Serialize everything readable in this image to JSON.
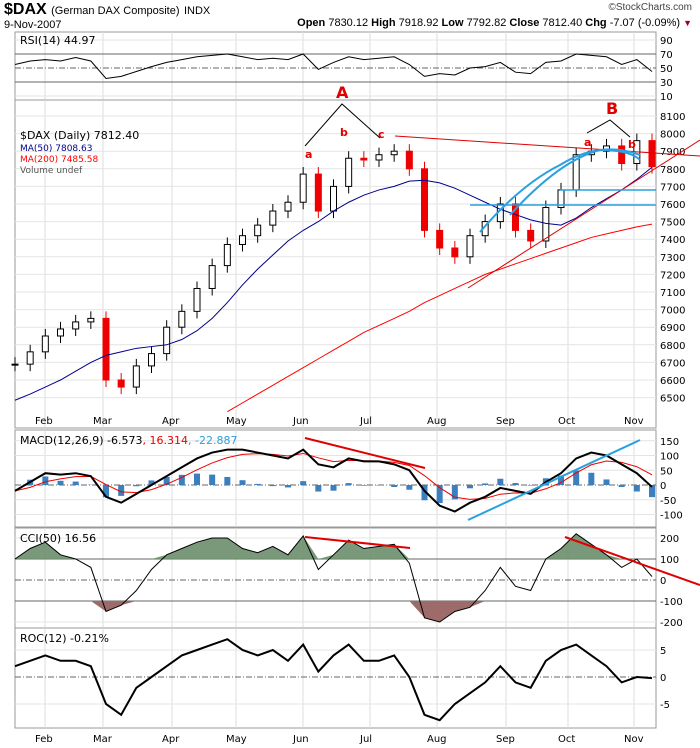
{
  "header": {
    "symbol": "$DAX",
    "name": "(German DAX Composite)",
    "exchange": "INDX",
    "date": "9-Nov-2007",
    "copyright": "©StockCharts.com",
    "open_label": "Open",
    "open": "7830.12",
    "high_label": "High",
    "high": "7918.92",
    "low_label": "Low",
    "low": "7792.82",
    "close_label": "Close",
    "close": "7812.40",
    "chg_label": "Chg",
    "chg": "-7.07 (-0.09%)",
    "chg_icon": "down-triangle-icon"
  },
  "legends": {
    "rsi": "RSI(14) 44.97",
    "price": "$DAX (Daily) 7812.40",
    "ma50": "MA(50) 7808.63",
    "ma200": "MA(200) 7485.58",
    "volume": "Volume undef",
    "macd": "MACD(12,26,9) -6.573",
    "macd_signal": ", 16.314",
    "macd_hist": ", -22.887",
    "cci": "CCI(50) 16.56",
    "roc": "ROC(12) -0.21%"
  },
  "annotations": {
    "A": "A",
    "B": "B",
    "a1": "a",
    "b1": "b",
    "c1": "c",
    "a2": "a",
    "b2": "b"
  },
  "colors": {
    "ma50": "#00008b",
    "ma200": "#ff0000",
    "annot": "#e00000",
    "channel": "#2aa0e0",
    "cci_fill_pos": "#6b8e6b",
    "cci_fill_neg": "#9e6b6b",
    "hist": "#3b7fbf"
  },
  "chart_data": {
    "type": "line",
    "months": [
      "Feb",
      "Mar",
      "Apr",
      "May",
      "Jun",
      "Jul",
      "Aug",
      "Sep",
      "Oct",
      "Nov"
    ],
    "dates": [
      "2007-01-19",
      "2007-01-26",
      "2007-02-02",
      "2007-02-09",
      "2007-02-16",
      "2007-02-23",
      "2007-03-02",
      "2007-03-09",
      "2007-03-16",
      "2007-03-23",
      "2007-03-30",
      "2007-04-06",
      "2007-04-13",
      "2007-04-20",
      "2007-04-27",
      "2007-05-04",
      "2007-05-11",
      "2007-05-18",
      "2007-05-25",
      "2007-06-01",
      "2007-06-08",
      "2007-06-15",
      "2007-06-22",
      "2007-06-29",
      "2007-07-06",
      "2007-07-13",
      "2007-07-20",
      "2007-07-27",
      "2007-08-03",
      "2007-08-10",
      "2007-08-17",
      "2007-08-24",
      "2007-08-31",
      "2007-09-07",
      "2007-09-14",
      "2007-09-21",
      "2007-09-28",
      "2007-10-05",
      "2007-10-12",
      "2007-10-19",
      "2007-10-26",
      "2007-11-02",
      "2007-11-09"
    ],
    "price": {
      "ticks": [
        8100,
        8000,
        7900,
        7800,
        7700,
        7600,
        7500,
        7400,
        7300,
        7200,
        7100,
        7000,
        6900,
        6800,
        6700,
        6600,
        6500
      ],
      "close": [
        6690,
        6760,
        6850,
        6890,
        6930,
        6950,
        6600,
        6560,
        6680,
        6750,
        6900,
        6990,
        7120,
        7250,
        7370,
        7420,
        7480,
        7560,
        7610,
        7770,
        7560,
        7700,
        7860,
        7850,
        7880,
        7900,
        7800,
        7450,
        7350,
        7300,
        7420,
        7500,
        7600,
        7450,
        7390,
        7580,
        7680,
        7880,
        7900,
        7930,
        7830,
        7960,
        7812.4
      ],
      "ma50": [
        6485,
        6520,
        6560,
        6600,
        6650,
        6700,
        6740,
        6760,
        6780,
        6790,
        6800,
        6830,
        6880,
        6950,
        7040,
        7140,
        7230,
        7310,
        7390,
        7450,
        7500,
        7560,
        7610,
        7650,
        7680,
        7700,
        7730,
        7735,
        7720,
        7690,
        7650,
        7610,
        7570,
        7540,
        7510,
        7490,
        7480,
        7520,
        7580,
        7630,
        7680,
        7740,
        7808.63
      ],
      "ma200_start_index": 14,
      "ma200": [
        6420,
        6470,
        6520,
        6570,
        6620,
        6670,
        6720,
        6770,
        6820,
        6870,
        6910,
        6950,
        6990,
        7040,
        7080,
        7120,
        7160,
        7200,
        7230,
        7260,
        7290,
        7320,
        7350,
        7380,
        7410,
        7430,
        7450,
        7470,
        7485.58
      ]
    },
    "rsi": {
      "ticks": [
        90,
        70,
        50,
        30,
        10
      ],
      "values": [
        55,
        60,
        62,
        60,
        65,
        60,
        35,
        38,
        45,
        52,
        58,
        62,
        66,
        68,
        70,
        66,
        62,
        64,
        62,
        70,
        48,
        58,
        66,
        62,
        64,
        66,
        55,
        38,
        42,
        40,
        50,
        52,
        58,
        44,
        42,
        58,
        60,
        70,
        68,
        66,
        55,
        62,
        44.97
      ]
    },
    "macd": {
      "ticks": [
        150,
        100,
        50,
        0,
        -50,
        -100
      ],
      "values": [
        -20,
        10,
        40,
        35,
        40,
        30,
        -40,
        -60,
        -30,
        0,
        30,
        60,
        90,
        110,
        120,
        120,
        110,
        100,
        90,
        120,
        70,
        60,
        90,
        80,
        80,
        70,
        50,
        -20,
        -70,
        -90,
        -60,
        -40,
        -10,
        -20,
        -30,
        10,
        40,
        90,
        110,
        100,
        70,
        40,
        -6.573
      ]
    },
    "cci": {
      "ticks": [
        200,
        100,
        0,
        -100,
        -200
      ],
      "values": [
        100,
        150,
        180,
        120,
        100,
        60,
        -150,
        -120,
        -50,
        50,
        120,
        150,
        180,
        200,
        200,
        150,
        130,
        160,
        120,
        210,
        50,
        120,
        190,
        150,
        160,
        170,
        80,
        -180,
        -200,
        -150,
        -130,
        -50,
        60,
        -30,
        -50,
        100,
        150,
        220,
        170,
        120,
        60,
        100,
        16.56
      ]
    },
    "roc": {
      "ticks": [
        5,
        0,
        -5
      ],
      "values": [
        2,
        3,
        4,
        3,
        3,
        2,
        -5,
        -7,
        -2,
        0,
        2,
        4,
        5,
        6,
        7,
        5,
        4,
        5,
        3,
        6,
        1,
        4,
        6,
        3,
        3,
        4,
        0,
        -7,
        -8,
        -5,
        -3,
        -1,
        2,
        -1,
        -2,
        3,
        5,
        6,
        4,
        2,
        -1,
        0,
        -0.21
      ]
    }
  }
}
